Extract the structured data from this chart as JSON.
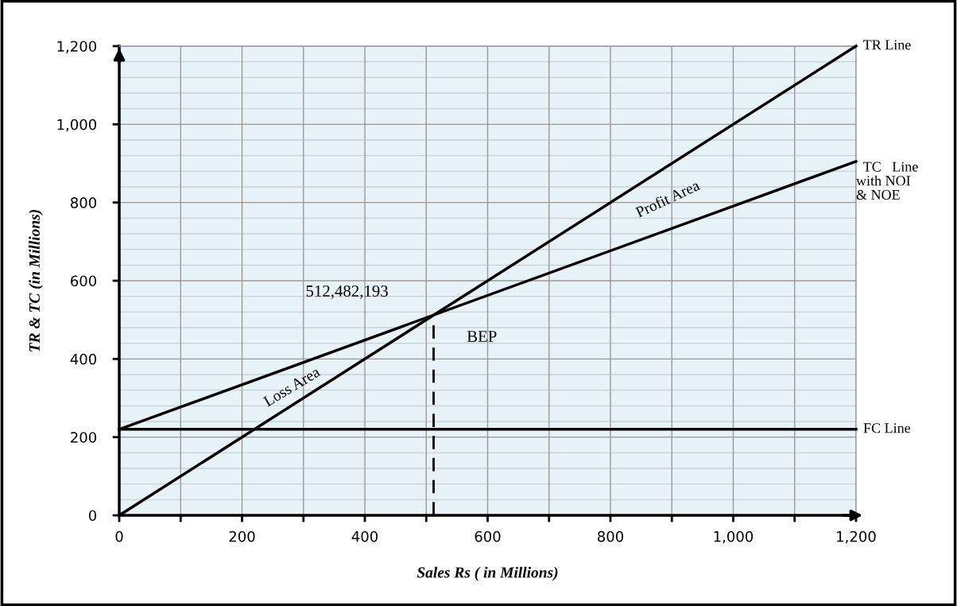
{
  "chart_data": {
    "type": "line",
    "xlabel": "Sales Rs ( in Millions)",
    "ylabel": "TR & TC (in Millions)",
    "series": [
      {
        "name": "TR Line",
        "color": "#000000",
        "x": [
          0,
          1200
        ],
        "values": [
          0,
          1200
        ]
      },
      {
        "name": "TC   Line\nwith NOI\n& NOE",
        "color": "#000000",
        "x": [
          0,
          1200
        ],
        "values": [
          220,
          905
        ]
      },
      {
        "name": "FC Line",
        "color": "#000000",
        "x": [
          0,
          1200
        ],
        "values": [
          220,
          220
        ]
      },
      {
        "color": "#000000",
        "x": [
          512,
          512
        ],
        "values": [
          0,
          507
        ],
        "line_style": "dashed"
      }
    ],
    "annotations": [
      "512,482,193",
      {
        "text": "BEP",
        "x": 512,
        "y": 507
      },
      "Loss Area",
      "Profit Area"
    ],
    "xlim": [
      0,
      1200
    ],
    "ylim": [
      0,
      1200
    ],
    "xticks": [
      0,
      {
        "value": 100,
        "label": null
      },
      200,
      {
        "value": 300,
        "label": null
      },
      400,
      {
        "value": 500,
        "label": null
      },
      600,
      {
        "value": 700,
        "label": null
      },
      800,
      {
        "value": 900,
        "label": null
      },
      {
        "value": 1000,
        "label": "1,000"
      },
      {
        "value": 1100,
        "label": null
      },
      {
        "value": 1200,
        "label": "1,200"
      }
    ],
    "yticks": [
      0,
      200,
      400,
      600,
      800,
      {
        "value": 1000,
        "label": "1,000"
      },
      {
        "value": 1200,
        "label": "1,200"
      }
    ],
    "grid": true,
    "marker": "none",
    "line_style": "solid",
    "legend": false
  }
}
